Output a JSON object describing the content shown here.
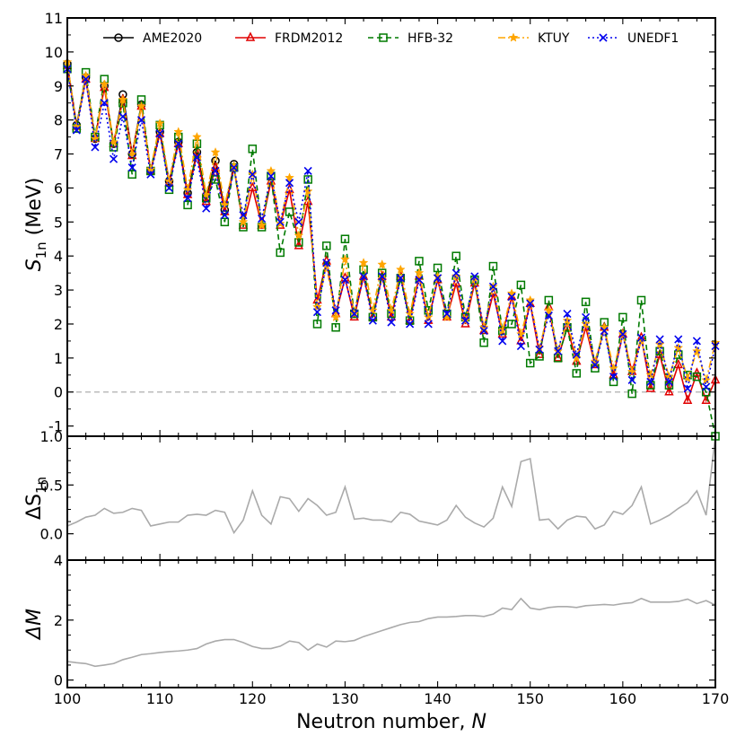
{
  "chart_data": [
    {
      "type": "line",
      "panel": "top",
      "ylabel": "S1n (MeV)",
      "ylabel_main": "S",
      "ylabel_sub": "1n",
      "ylabel_unit": " (MeV)",
      "xlim": [
        100,
        170
      ],
      "ylim": [
        -1.3,
        11
      ],
      "yticks": [
        -1,
        0,
        1,
        2,
        3,
        4,
        5,
        6,
        7,
        8,
        9,
        10,
        11
      ],
      "reference_line": 0,
      "legend_position": "top",
      "series": [
        {
          "name": "AME2020",
          "color": "#000000",
          "marker": "circle",
          "dash": "solid",
          "x": [
            100,
            101,
            102,
            103,
            104,
            105,
            106,
            107,
            108,
            109,
            110,
            111,
            112,
            113,
            114,
            115,
            116,
            117,
            118
          ],
          "y": [
            9.65,
            7.85,
            9.25,
            7.45,
            9.0,
            7.3,
            8.75,
            7.0,
            8.45,
            6.5,
            7.65,
            6.2,
            7.35,
            5.85,
            7.05,
            5.7,
            6.8,
            5.35,
            6.7
          ]
        },
        {
          "name": "FRDM2012",
          "color": "#e00000",
          "marker": "triangle",
          "dash": "solid",
          "x": [
            100,
            101,
            102,
            103,
            104,
            105,
            106,
            107,
            108,
            109,
            110,
            111,
            112,
            113,
            114,
            115,
            116,
            117,
            118,
            119,
            120,
            121,
            122,
            123,
            124,
            125,
            126,
            127,
            128,
            129,
            130,
            131,
            132,
            133,
            134,
            135,
            136,
            137,
            138,
            139,
            140,
            141,
            142,
            143,
            144,
            145,
            146,
            147,
            148,
            149,
            150,
            151,
            152,
            153,
            154,
            155,
            156,
            157,
            158,
            159,
            160,
            161,
            162,
            163,
            164,
            165,
            166,
            167,
            168,
            169,
            170
          ],
          "y": [
            9.6,
            7.8,
            9.2,
            7.45,
            8.95,
            7.3,
            8.6,
            6.95,
            8.4,
            6.5,
            7.6,
            6.15,
            7.3,
            5.8,
            7.0,
            5.6,
            6.6,
            5.3,
            6.6,
            4.9,
            6.0,
            4.9,
            6.2,
            4.9,
            5.95,
            4.3,
            5.6,
            2.7,
            3.85,
            2.3,
            3.35,
            2.2,
            3.4,
            2.2,
            3.4,
            2.2,
            3.4,
            2.1,
            3.4,
            2.1,
            3.3,
            2.2,
            3.2,
            2.0,
            3.2,
            1.8,
            2.9,
            1.7,
            2.8,
            1.5,
            2.6,
            1.1,
            2.5,
            1.0,
            1.9,
            0.9,
            1.9,
            0.8,
            1.9,
            0.5,
            1.7,
            0.6,
            1.6,
            0.1,
            1.1,
            0.0,
            0.8,
            -0.25,
            0.55,
            -0.25,
            0.35
          ]
        },
        {
          "name": "HFB-32",
          "color": "#007a00",
          "marker": "square",
          "dash": "dashed",
          "x": [
            100,
            101,
            102,
            103,
            104,
            105,
            106,
            107,
            108,
            109,
            110,
            111,
            112,
            113,
            114,
            115,
            116,
            117,
            118,
            119,
            120,
            121,
            122,
            123,
            124,
            125,
            126,
            127,
            128,
            129,
            130,
            131,
            132,
            133,
            134,
            135,
            136,
            137,
            138,
            139,
            140,
            141,
            142,
            143,
            144,
            145,
            146,
            147,
            148,
            149,
            150,
            151,
            152,
            153,
            154,
            155,
            156,
            157,
            158,
            159,
            160,
            161,
            162,
            163,
            164,
            165,
            166,
            167,
            168,
            169,
            170
          ],
          "y": [
            9.5,
            7.75,
            9.4,
            7.5,
            9.2,
            7.2,
            8.5,
            6.4,
            8.6,
            6.5,
            7.85,
            5.95,
            7.5,
            5.5,
            7.3,
            5.7,
            6.25,
            5.0,
            6.6,
            4.85,
            7.15,
            4.85,
            6.35,
            4.1,
            5.3,
            4.4,
            6.25,
            2.0,
            4.3,
            1.9,
            4.5,
            2.3,
            3.6,
            2.2,
            3.5,
            2.3,
            3.35,
            2.1,
            3.85,
            2.4,
            3.65,
            2.3,
            4.0,
            2.2,
            3.3,
            1.45,
            3.7,
            1.8,
            2.0,
            3.15,
            0.85,
            1.05,
            2.7,
            1.0,
            1.9,
            0.55,
            2.65,
            0.7,
            2.05,
            0.3,
            2.2,
            -0.05,
            2.7,
            0.2,
            1.2,
            0.2,
            1.1,
            0.5,
            0.45,
            0.0,
            -1.3
          ]
        },
        {
          "name": "KTUY",
          "color": "#ffa500",
          "marker": "star",
          "dash": "dashdot",
          "x": [
            100,
            101,
            102,
            103,
            104,
            105,
            106,
            107,
            108,
            109,
            110,
            111,
            112,
            113,
            114,
            115,
            116,
            117,
            118,
            119,
            120,
            121,
            122,
            123,
            124,
            125,
            126,
            127,
            128,
            129,
            130,
            131,
            132,
            133,
            134,
            135,
            136,
            137,
            138,
            139,
            140,
            141,
            142,
            143,
            144,
            145,
            146,
            147,
            148,
            149,
            150,
            151,
            152,
            153,
            154,
            155,
            156,
            157,
            158,
            159,
            160,
            161,
            162,
            163,
            164,
            165,
            166,
            167,
            168,
            169,
            170
          ],
          "y": [
            9.7,
            7.8,
            9.3,
            7.45,
            9.05,
            7.35,
            8.6,
            7.0,
            8.4,
            6.55,
            7.9,
            6.2,
            7.65,
            5.95,
            7.5,
            5.8,
            7.05,
            5.5,
            6.65,
            5.0,
            6.4,
            4.9,
            6.5,
            4.95,
            6.3,
            4.6,
            5.9,
            2.5,
            3.7,
            2.2,
            3.9,
            2.3,
            3.8,
            2.4,
            3.75,
            2.4,
            3.6,
            2.3,
            3.5,
            2.2,
            3.4,
            2.2,
            3.4,
            2.1,
            3.3,
            1.9,
            3.1,
            1.8,
            2.9,
            1.7,
            2.7,
            1.3,
            2.4,
            1.2,
            2.1,
            1.0,
            2.0,
            0.9,
            1.9,
            0.7,
            1.7,
            0.6,
            1.5,
            0.5,
            1.4,
            0.45,
            1.3,
            0.4,
            1.2,
            0.35,
            1.45
          ]
        },
        {
          "name": "UNEDF1",
          "color": "#0000ee",
          "marker": "x",
          "dash": "dotted",
          "x": [
            100,
            101,
            102,
            103,
            104,
            105,
            106,
            107,
            108,
            109,
            110,
            111,
            112,
            113,
            114,
            115,
            116,
            117,
            118,
            119,
            120,
            121,
            122,
            123,
            124,
            125,
            126,
            127,
            128,
            129,
            130,
            131,
            132,
            133,
            134,
            135,
            136,
            137,
            138,
            139,
            140,
            141,
            142,
            143,
            144,
            145,
            146,
            147,
            148,
            149,
            150,
            151,
            152,
            153,
            154,
            155,
            156,
            157,
            158,
            159,
            160,
            161,
            162,
            163,
            164,
            165,
            166,
            167,
            168,
            169,
            170
          ],
          "y": [
            9.5,
            7.7,
            9.2,
            7.2,
            8.5,
            6.85,
            8.1,
            6.6,
            8.0,
            6.4,
            7.6,
            6.0,
            7.3,
            5.7,
            6.9,
            5.4,
            6.5,
            5.2,
            6.6,
            5.2,
            6.4,
            5.1,
            6.35,
            5.0,
            6.15,
            5.0,
            6.5,
            2.35,
            3.8,
            2.4,
            3.3,
            2.3,
            3.4,
            2.1,
            3.4,
            2.05,
            3.35,
            2.0,
            3.3,
            2.0,
            3.35,
            2.3,
            3.5,
            2.1,
            3.4,
            1.8,
            3.1,
            1.5,
            2.8,
            1.35,
            2.6,
            1.25,
            2.25,
            1.2,
            2.3,
            1.1,
            2.2,
            0.8,
            1.8,
            0.45,
            1.7,
            0.35,
            1.6,
            0.3,
            1.55,
            0.3,
            1.55,
            0.1,
            1.5,
            0.15,
            1.35
          ]
        }
      ]
    },
    {
      "type": "line",
      "panel": "middle",
      "ylabel": "ΔS1n",
      "ylabel_main": "ΔS",
      "ylabel_sub": "1n",
      "xlim": [
        100,
        170
      ],
      "ylim": [
        -0.27,
        1.0
      ],
      "yticks": [
        0.0,
        0.5,
        1.0
      ],
      "ytick_labels": [
        "0.0",
        "0.5",
        "1.0"
      ],
      "series": [
        {
          "name": "ΔS1n",
          "color": "#aaaaaa",
          "x": [
            100,
            101,
            102,
            103,
            104,
            105,
            106,
            107,
            108,
            109,
            110,
            111,
            112,
            113,
            114,
            115,
            116,
            117,
            118,
            119,
            120,
            121,
            122,
            123,
            124,
            125,
            126,
            127,
            128,
            129,
            130,
            131,
            132,
            133,
            134,
            135,
            136,
            137,
            138,
            139,
            140,
            141,
            142,
            143,
            144,
            145,
            146,
            147,
            148,
            149,
            150,
            151,
            152,
            153,
            154,
            155,
            156,
            157,
            158,
            159,
            160,
            161,
            162,
            163,
            164,
            165,
            166,
            167,
            168,
            169,
            170
          ],
          "y": [
            0.08,
            0.12,
            0.17,
            0.19,
            0.26,
            0.21,
            0.22,
            0.26,
            0.24,
            0.08,
            0.1,
            0.12,
            0.12,
            0.19,
            0.2,
            0.19,
            0.24,
            0.22,
            0.01,
            0.14,
            0.44,
            0.19,
            0.1,
            0.38,
            0.36,
            0.23,
            0.36,
            0.29,
            0.19,
            0.22,
            0.48,
            0.15,
            0.16,
            0.14,
            0.14,
            0.12,
            0.22,
            0.2,
            0.13,
            0.11,
            0.09,
            0.14,
            0.29,
            0.17,
            0.11,
            0.07,
            0.16,
            0.48,
            0.28,
            0.74,
            0.77,
            0.14,
            0.15,
            0.05,
            0.14,
            0.18,
            0.17,
            0.05,
            0.09,
            0.23,
            0.2,
            0.29,
            0.48,
            0.1,
            0.14,
            0.19,
            0.26,
            0.32,
            0.44,
            0.19,
            1.0
          ]
        }
      ]
    },
    {
      "type": "line",
      "panel": "bottom",
      "ylabel": "ΔM",
      "xlabel": "Neutron number, N",
      "xlabel_text": "Neutron number, ",
      "xlabel_var": "N",
      "xlim": [
        100,
        170
      ],
      "ylim": [
        -0.25,
        4
      ],
      "xticks": [
        100,
        110,
        120,
        130,
        140,
        150,
        160,
        170
      ],
      "yticks": [
        0,
        2,
        4
      ],
      "series": [
        {
          "name": "ΔM",
          "color": "#aaaaaa",
          "x": [
            100,
            101,
            102,
            103,
            104,
            105,
            106,
            107,
            108,
            109,
            110,
            111,
            112,
            113,
            114,
            115,
            116,
            117,
            118,
            119,
            120,
            121,
            122,
            123,
            124,
            125,
            126,
            127,
            128,
            129,
            130,
            131,
            132,
            133,
            134,
            135,
            136,
            137,
            138,
            139,
            140,
            141,
            142,
            143,
            144,
            145,
            146,
            147,
            148,
            149,
            150,
            151,
            152,
            153,
            154,
            155,
            156,
            157,
            158,
            159,
            160,
            161,
            162,
            163,
            164,
            165,
            166,
            167,
            168,
            169,
            170
          ],
          "y": [
            0.62,
            0.58,
            0.55,
            0.46,
            0.5,
            0.55,
            0.68,
            0.76,
            0.85,
            0.88,
            0.92,
            0.95,
            0.97,
            1.0,
            1.05,
            1.2,
            1.3,
            1.35,
            1.35,
            1.25,
            1.12,
            1.05,
            1.05,
            1.13,
            1.3,
            1.25,
            1.0,
            1.2,
            1.1,
            1.3,
            1.28,
            1.32,
            1.45,
            1.55,
            1.65,
            1.75,
            1.85,
            1.92,
            1.95,
            2.05,
            2.1,
            2.1,
            2.12,
            2.15,
            2.15,
            2.12,
            2.2,
            2.4,
            2.35,
            2.72,
            2.4,
            2.35,
            2.42,
            2.45,
            2.45,
            2.42,
            2.48,
            2.5,
            2.52,
            2.5,
            2.55,
            2.58,
            2.72,
            2.6,
            2.6,
            2.6,
            2.62,
            2.7,
            2.55,
            2.65,
            2.5
          ]
        }
      ]
    }
  ]
}
